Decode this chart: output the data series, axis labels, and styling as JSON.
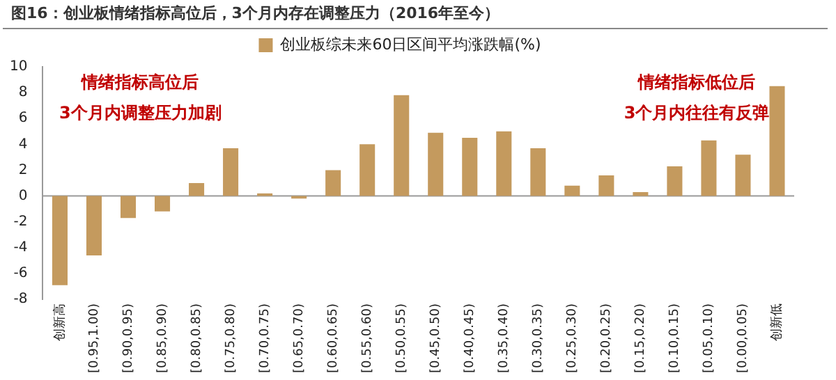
{
  "chart_data": {
    "type": "bar",
    "title": "图16：创业板情绪指标高位后，3个月内存在调整压力（2016年至今）",
    "categories": [
      "创新高",
      "[0.95,1.00)",
      "[0.90,0.95)",
      "[0.85,0.90)",
      "[0.80,0.85)",
      "[0.75,0.80)",
      "[0.70,0.75)",
      "[0.65,0.70)",
      "[0.60,0.65)",
      "[0.55,0.60)",
      "[0.50,0.55)",
      "[0.45,0.50)",
      "[0.40,0.45)",
      "[0.35,0.40)",
      "[0.30,0.35)",
      "[0.25,0.30)",
      "[0.20,0.25)",
      "[0.15,0.20)",
      "[0.10,0.15)",
      "[0.05,0.10)",
      "[0.00,0.05)",
      "创新低"
    ],
    "series": [
      {
        "name": "创业板综未来60日区间平均涨跌幅(%)",
        "color": "#c49a5e",
        "values": [
          -6.9,
          -4.6,
          -1.7,
          -1.2,
          1.0,
          3.7,
          0.2,
          -0.2,
          2.0,
          4.0,
          7.8,
          4.9,
          4.5,
          5.0,
          3.7,
          0.8,
          1.6,
          0.3,
          2.3,
          4.3,
          3.2,
          8.5
        ]
      }
    ],
    "ylim": [
      -8,
      10
    ],
    "yticks": [
      -8,
      -6,
      -4,
      -2,
      0,
      2,
      4,
      6,
      8,
      10
    ],
    "legend": "top",
    "annotations": [
      "情绪指标高位后\n3个月内调整压力加剧",
      "情绪指标低位后\n3个月内往往有反弹"
    ]
  }
}
